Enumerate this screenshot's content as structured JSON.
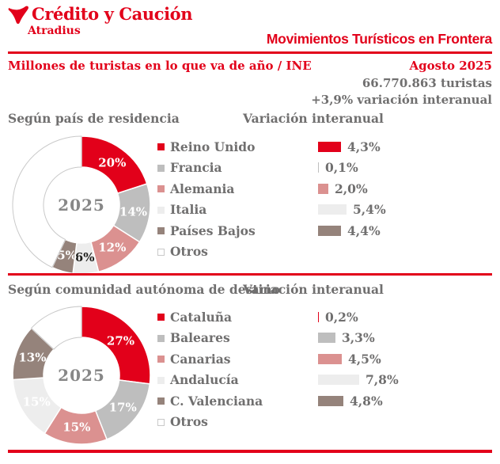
{
  "header": {
    "logo_title": "Crédito y Caución",
    "logo_subtitle": "Atradius",
    "title": "Movimientos Turísticos en Frontera"
  },
  "meta": {
    "left_label": "Millones de turistas en lo que va de año / INE",
    "period": "Agosto 2025",
    "total": "66.770.863 turistas",
    "variation": "+3,9% variación interanual"
  },
  "colors": {
    "brand_red": "#e2001a",
    "gray": "#bebebe",
    "pink": "#db9190",
    "light_gray": "#ededed",
    "brown": "#95837b",
    "white_slice_border": "#c9c9c9",
    "text_gray": "#706f6f",
    "center_gray": "#878787"
  },
  "chart_data": [
    {
      "type": "pie",
      "title": "Según país de residencia",
      "center_label": "2025",
      "legend_position": "right",
      "categories": [
        "Reino Unido",
        "Francia",
        "Alemania",
        "Italia",
        "Países Bajos",
        "Otros"
      ],
      "values": [
        20,
        14,
        12,
        6,
        5,
        43
      ],
      "slice_labels": [
        "20%",
        "14%",
        "12%",
        "6%",
        "5%",
        ""
      ],
      "colors": [
        "#e2001a",
        "#bebebe",
        "#db9190",
        "#ededed",
        "#95837b",
        "#ffffff"
      ],
      "slice_label_colors": [
        "#ffffff",
        "#ffffff",
        "#ffffff",
        "#1d1d1b",
        "#ffffff",
        ""
      ],
      "variation": {
        "title": "Variación interanual",
        "categories": [
          "Reino Unido",
          "Francia",
          "Alemania",
          "Italia",
          "Países Bajos"
        ],
        "values": [
          4.3,
          0.1,
          2.0,
          5.4,
          4.4
        ],
        "labels": [
          "4,3%",
          "0,1%",
          "2,0%",
          "5,4%",
          "4,4%"
        ]
      }
    },
    {
      "type": "pie",
      "title": "Según comunidad autónoma de destino",
      "center_label": "2025",
      "legend_position": "right",
      "categories": [
        "Cataluña",
        "Baleares",
        "Canarias",
        "Andalucía",
        "C. Valenciana",
        "Otros"
      ],
      "values": [
        27,
        17,
        15,
        15,
        13,
        13
      ],
      "slice_labels": [
        "27%",
        "17%",
        "15%",
        "15%",
        "13%",
        ""
      ],
      "colors": [
        "#e2001a",
        "#bebebe",
        "#db9190",
        "#ededed",
        "#95837b",
        "#ffffff"
      ],
      "slice_label_colors": [
        "#ffffff",
        "#ffffff",
        "#ffffff",
        "#ffffff",
        "#ffffff",
        ""
      ],
      "variation": {
        "title": "Variación interanual",
        "categories": [
          "Cataluña",
          "Baleares",
          "Canarias",
          "Andalucía",
          "C. Valenciana"
        ],
        "values": [
          0.2,
          3.3,
          4.5,
          7.8,
          4.8
        ],
        "labels": [
          "0,2%",
          "3,3%",
          "4,5%",
          "7,8%",
          "4,8%"
        ]
      }
    }
  ]
}
